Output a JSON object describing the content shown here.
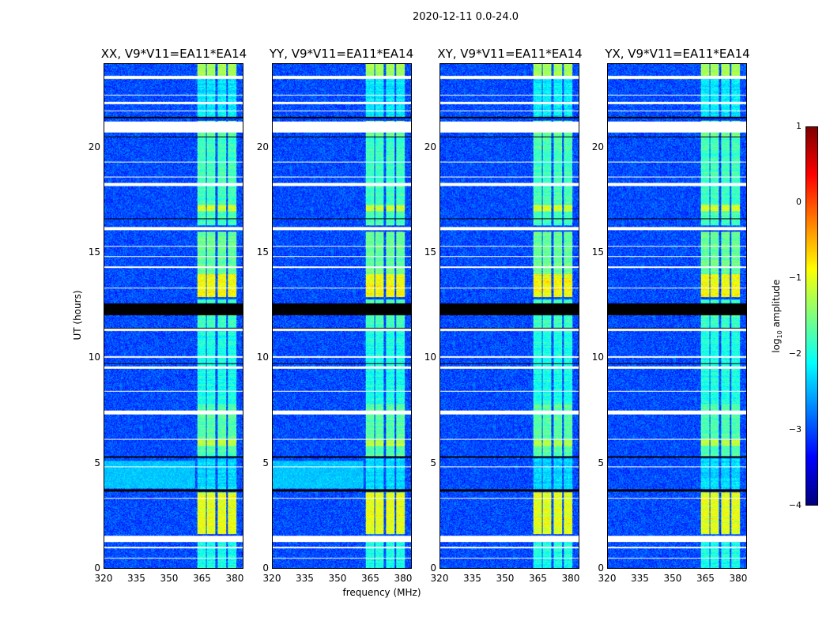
{
  "chart_data": {
    "type": "heatmap",
    "title": "2020-12-11 0.0-24.0",
    "xlabel": "frequency (MHz)",
    "ylabel": "UT (hours)",
    "xlim": [
      320,
      384
    ],
    "ylim": [
      0,
      24
    ],
    "xticks": [
      "320",
      "335",
      "350",
      "365",
      "380"
    ],
    "yticks": [
      "0",
      "5",
      "10",
      "15",
      "20"
    ],
    "colorbar": {
      "label": "log10 amplitude",
      "label_main": "log",
      "label_sub": "10",
      "label_rest": " amplitude",
      "range": [
        -4,
        1
      ],
      "ticks": [
        "1",
        "0",
        "−1",
        "−2",
        "−3",
        "−4"
      ],
      "colormap": "jet"
    },
    "panels": [
      {
        "title": "XX, V9*V11=EA11*EA14",
        "broadband_4_5h": true
      },
      {
        "title": "YY, V9*V11=EA11*EA14",
        "broadband_4_5h": true
      },
      {
        "title": "XY, V9*V11=EA11*EA14",
        "broadband_4_5h": false
      },
      {
        "title": "YX, V9*V11=EA11*EA14",
        "broadband_4_5h": false
      }
    ],
    "background_log_amp": -3.0,
    "subbands_mhz": [
      [
        363,
        367
      ],
      [
        367.5,
        371.5
      ],
      [
        372.5,
        376.5
      ],
      [
        377,
        381
      ]
    ],
    "band_levels": [
      {
        "t": [
          0,
          1.5
        ],
        "v": -2.0
      },
      {
        "t": [
          1.6,
          3.6
        ],
        "v": -1.0
      },
      {
        "t": [
          3.7,
          5.2
        ],
        "v": -2.3
      },
      {
        "t": [
          5.3,
          7.8
        ],
        "v": -1.7
      },
      {
        "t": [
          5.8,
          6.1
        ],
        "v": -1.2
      },
      {
        "t": [
          7.8,
          11.4
        ],
        "v": -2.0
      },
      {
        "t": [
          11.4,
          12.8
        ],
        "v": -1.8
      },
      {
        "t": [
          12.9,
          14.0
        ],
        "v": -0.9
      },
      {
        "t": [
          14.0,
          16.0
        ],
        "v": -1.6
      },
      {
        "t": [
          16.3,
          17.6
        ],
        "v": -1.8
      },
      {
        "t": [
          17.0,
          17.3
        ],
        "v": -1.1
      },
      {
        "t": [
          17.6,
          20.5
        ],
        "v": -1.8
      },
      {
        "t": [
          20.5,
          21.3
        ],
        "v": -1.6
      },
      {
        "t": [
          21.5,
          23.3
        ],
        "v": -2.2
      },
      {
        "t": [
          23.3,
          24
        ],
        "v": -1.3
      }
    ],
    "flagged_white_hours": [
      [
        0.45,
        0.5
      ],
      [
        0.95,
        1.02
      ],
      [
        1.25,
        1.55
      ],
      [
        3.3,
        3.35
      ],
      [
        4.8,
        4.85
      ],
      [
        6.1,
        6.15
      ],
      [
        7.3,
        7.5
      ],
      [
        8.4,
        8.45
      ],
      [
        9.5,
        9.6
      ],
      [
        10.0,
        10.07
      ],
      [
        11.3,
        11.4
      ],
      [
        13.3,
        13.35
      ],
      [
        14.3,
        14.35
      ],
      [
        14.8,
        14.85
      ],
      [
        15.3,
        15.35
      ],
      [
        16.1,
        16.25
      ],
      [
        18.2,
        18.35
      ],
      [
        18.6,
        18.65
      ],
      [
        19.3,
        19.35
      ],
      [
        20.75,
        21.25
      ],
      [
        21.75,
        21.8
      ],
      [
        22.1,
        22.2
      ],
      [
        22.5,
        22.55
      ],
      [
        23.3,
        23.45
      ]
    ],
    "flagged_black_hours": [
      [
        12.05,
        12.6
      ],
      [
        3.65,
        3.75
      ],
      [
        5.25,
        5.32
      ],
      [
        9.7,
        9.75
      ],
      [
        11.4,
        11.45
      ],
      [
        16.6,
        16.65
      ],
      [
        20.5,
        20.55
      ],
      [
        21.4,
        21.5
      ]
    ]
  }
}
